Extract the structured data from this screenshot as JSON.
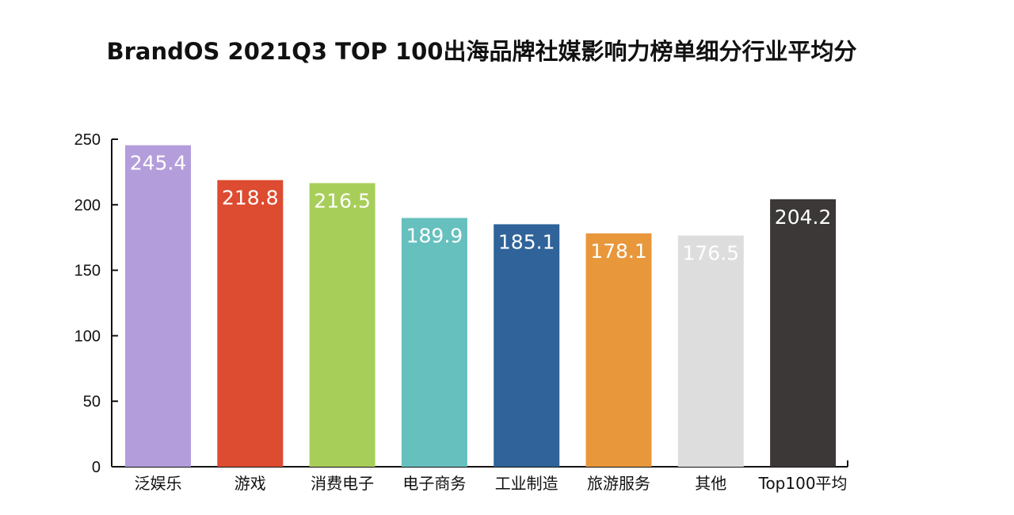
{
  "chart_data": {
    "type": "bar",
    "title": "BrandOS 2021Q3 TOP 100出海品牌社媒影响力榜单细分行业平均分",
    "xlabel": "",
    "ylabel": "",
    "ylim": [
      0,
      250
    ],
    "yticks": [
      0,
      50,
      100,
      150,
      200,
      250
    ],
    "ytick_labels": [
      "0",
      "50",
      "100",
      "150",
      "200",
      "250"
    ],
    "categories": [
      "泛娱乐",
      "游戏",
      "消费电子",
      "电子商务",
      "工业制造",
      "旅游服务",
      "其他",
      "Top100平均"
    ],
    "values": [
      245.4,
      218.8,
      216.5,
      189.9,
      185.1,
      178.1,
      176.5,
      204.2
    ],
    "value_labels": [
      "245.4",
      "218.8",
      "216.5",
      "189.9",
      "185.1",
      "178.1",
      "176.5",
      "204.2"
    ],
    "colors": [
      "#b39ddb",
      "#dd4b30",
      "#a8ce5a",
      "#66c0bd",
      "#2f6399",
      "#e8973b",
      "#dcdddc",
      "#3b3837"
    ],
    "grid": false,
    "legend": "none"
  }
}
